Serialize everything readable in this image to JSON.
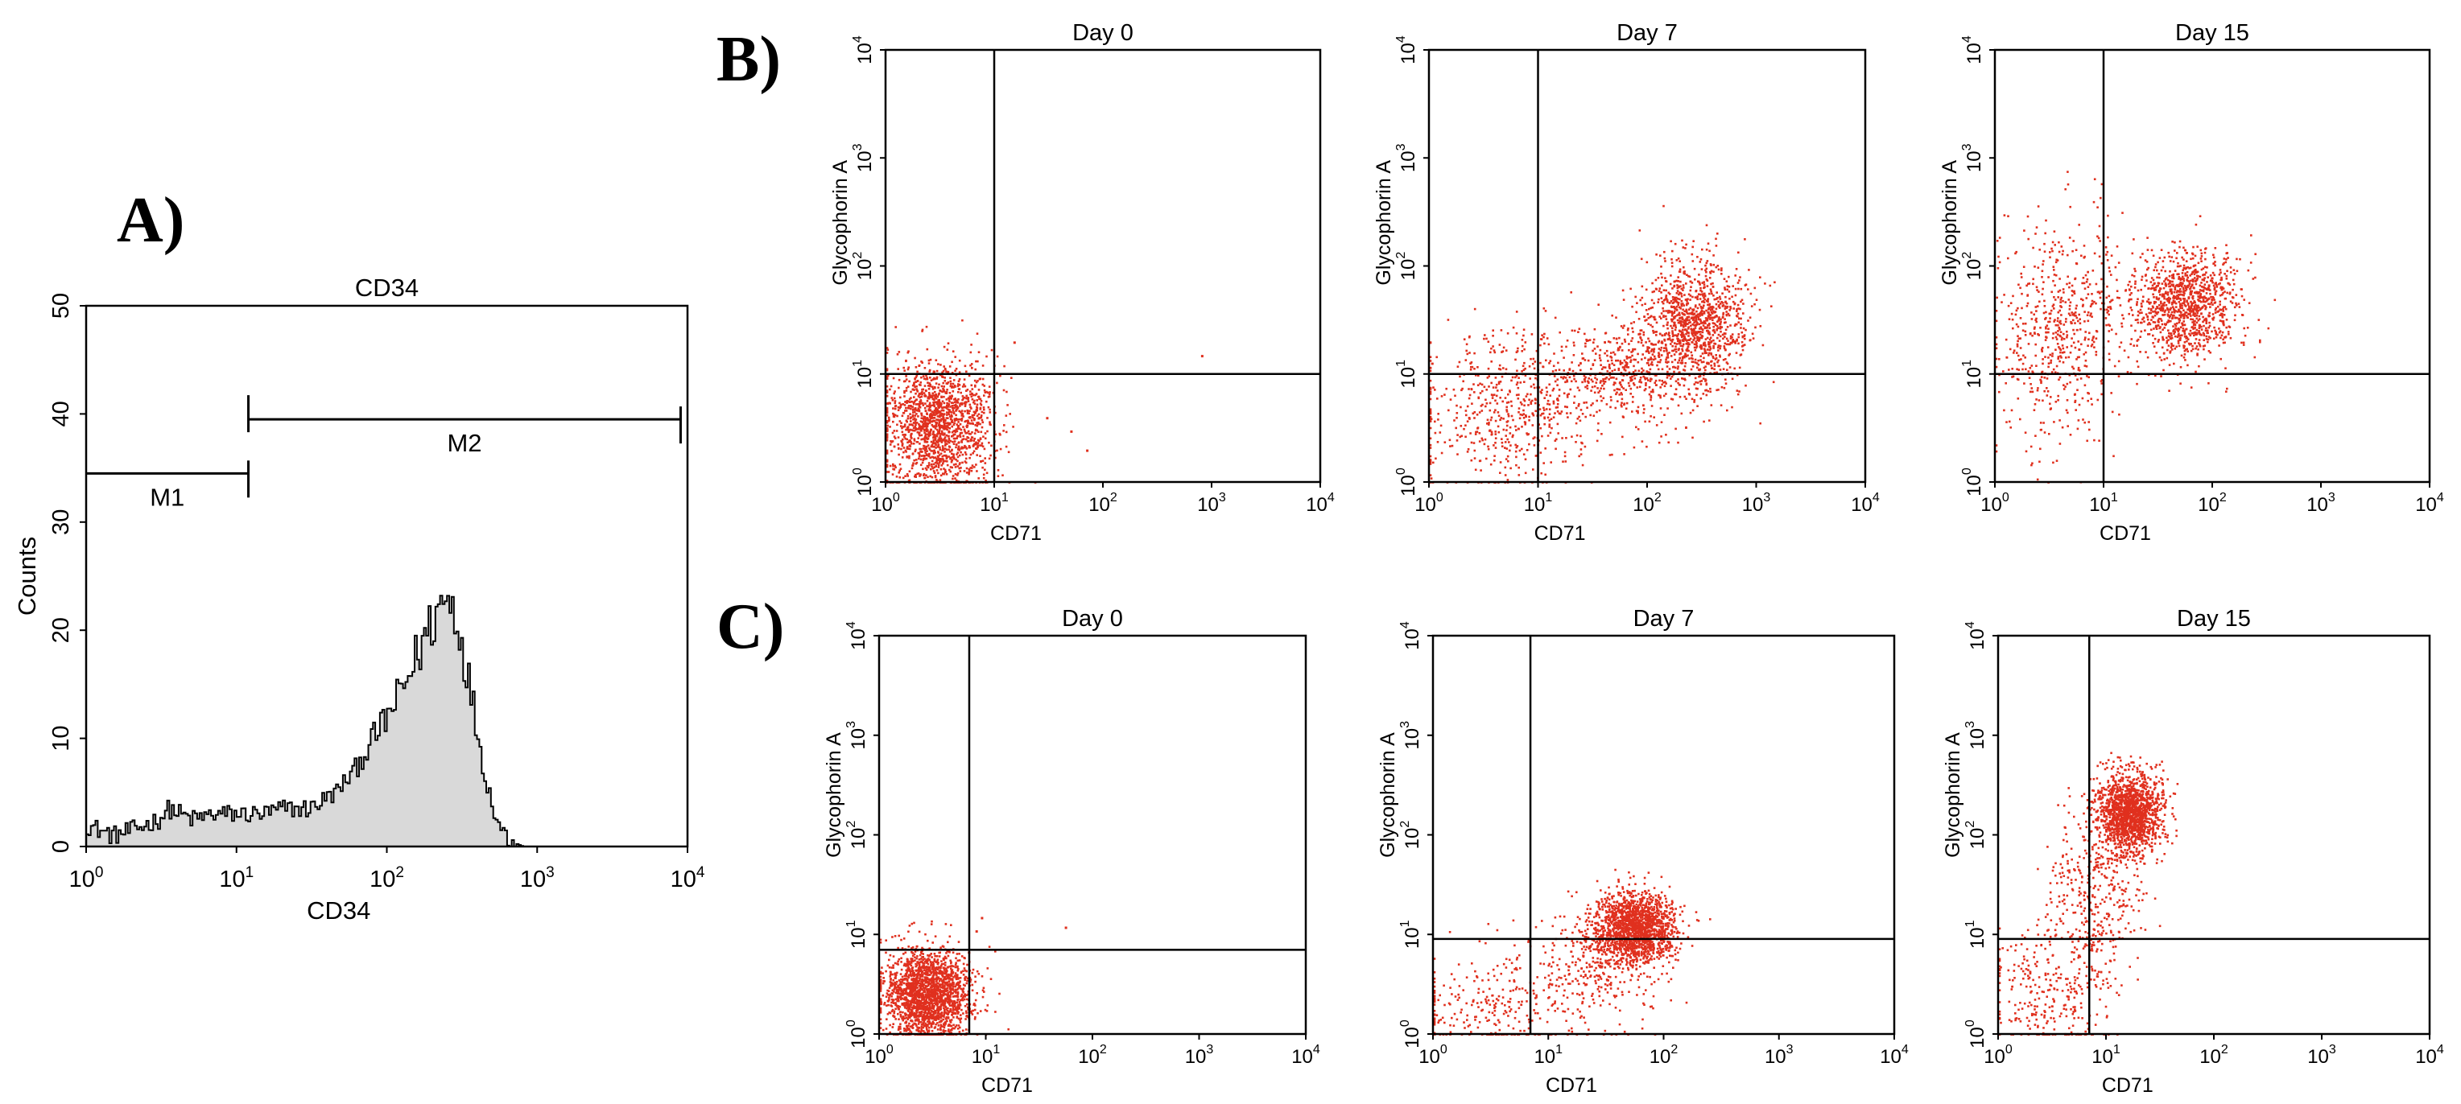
{
  "panel_labels": {
    "a": "A)",
    "b": "B)",
    "c": "C)"
  },
  "chart_data": [
    {
      "id": "A",
      "type": "histogram",
      "title": "CD34",
      "xlabel": "CD34",
      "ylabel": "Counts",
      "x_scale": "log",
      "xlim": [
        1,
        10000
      ],
      "ylim": [
        0,
        50
      ],
      "x_ticks": [
        {
          "base": "10",
          "exp": "0"
        },
        {
          "base": "10",
          "exp": "1"
        },
        {
          "base": "10",
          "exp": "2"
        },
        {
          "base": "10",
          "exp": "3"
        },
        {
          "base": "10",
          "exp": "4"
        }
      ],
      "y_ticks": [
        "0",
        "10",
        "20",
        "30",
        "40",
        "50"
      ],
      "fill_color": "#d9d9d9",
      "markers": [
        {
          "name": "M1",
          "x_start": 1,
          "x_end": 12,
          "y": 34.5
        },
        {
          "name": "M2",
          "x_start": 12,
          "x_end": 9000,
          "y": 39.5
        }
      ],
      "profile": [
        {
          "x": 1.0,
          "y": 2
        },
        {
          "x": 1.5,
          "y": 1
        },
        {
          "x": 2.0,
          "y": 1.5
        },
        {
          "x": 3.0,
          "y": 2.5
        },
        {
          "x": 3.5,
          "y": 3.5
        },
        {
          "x": 5.0,
          "y": 2.5
        },
        {
          "x": 7.0,
          "y": 3
        },
        {
          "x": 10,
          "y": 3
        },
        {
          "x": 15,
          "y": 3
        },
        {
          "x": 20,
          "y": 3.5
        },
        {
          "x": 30,
          "y": 3.5
        },
        {
          "x": 45,
          "y": 5
        },
        {
          "x": 60,
          "y": 7
        },
        {
          "x": 80,
          "y": 10
        },
        {
          "x": 100,
          "y": 12
        },
        {
          "x": 130,
          "y": 15
        },
        {
          "x": 160,
          "y": 18
        },
        {
          "x": 200,
          "y": 21
        },
        {
          "x": 240,
          "y": 23
        },
        {
          "x": 280,
          "y": 22
        },
        {
          "x": 320,
          "y": 18
        },
        {
          "x": 380,
          "y": 12
        },
        {
          "x": 450,
          "y": 6
        },
        {
          "x": 550,
          "y": 2
        },
        {
          "x": 650,
          "y": 0.5
        },
        {
          "x": 800,
          "y": 0
        },
        {
          "x": 10000,
          "y": 0
        }
      ]
    },
    {
      "id": "B-day0",
      "type": "scatter",
      "title": "Day 0",
      "xlabel": "CD71",
      "ylabel": "Glycophorin A",
      "x_scale": "log",
      "y_scale": "log",
      "xlim": [
        1,
        10000
      ],
      "ylim": [
        1,
        10000
      ],
      "quadrant": {
        "x": 10,
        "y": 10
      },
      "color": "#e0301e",
      "clusters": [
        {
          "cx": 3,
          "cy": 3.5,
          "sx": 0.26,
          "sy": 0.3,
          "n": 1600
        }
      ],
      "outliers": [
        {
          "x": 800,
          "y": 15
        },
        {
          "x": 50,
          "y": 3
        },
        {
          "x": 30,
          "y": 4
        },
        {
          "x": 15,
          "y": 20
        },
        {
          "x": 70,
          "y": 2
        }
      ]
    },
    {
      "id": "B-day7",
      "type": "scatter",
      "title": "Day 7",
      "xlabel": "CD71",
      "ylabel": "Glycophorin A",
      "x_scale": "log",
      "y_scale": "log",
      "xlim": [
        1,
        10000
      ],
      "ylim": [
        1,
        10000
      ],
      "quadrant": {
        "x": 10,
        "y": 10
      },
      "color": "#e0301e",
      "clusters": [
        {
          "cx": 270,
          "cy": 30,
          "sx": 0.25,
          "sy": 0.3,
          "n": 1100
        },
        {
          "cx": 60,
          "cy": 10,
          "sx": 0.35,
          "sy": 0.25,
          "n": 500
        },
        {
          "cx": 5,
          "cy": 5,
          "sx": 0.4,
          "sy": 0.35,
          "n": 550
        }
      ],
      "outliers": []
    },
    {
      "id": "B-day15",
      "type": "scatter",
      "title": "Day 15",
      "xlabel": "CD71",
      "ylabel": "Glycophorin A",
      "x_scale": "log",
      "y_scale": "log",
      "xlim": [
        1,
        10000
      ],
      "ylim": [
        1,
        10000
      ],
      "quadrant": {
        "x": 10,
        "y": 10
      },
      "color": "#e0301e",
      "clusters": [
        {
          "cx": 55,
          "cy": 45,
          "sx": 0.25,
          "sy": 0.25,
          "n": 1100
        },
        {
          "cx": 4,
          "cy": 25,
          "sx": 0.3,
          "sy": 0.5,
          "n": 600
        }
      ],
      "outliers": []
    },
    {
      "id": "C-day0",
      "type": "scatter",
      "title": "Day 0",
      "xlabel": "CD71",
      "ylabel": "Glycophorin A",
      "x_scale": "log",
      "y_scale": "log",
      "xlim": [
        1,
        10000
      ],
      "ylim": [
        1,
        10000
      ],
      "quadrant": {
        "x": 7,
        "y": 7
      },
      "color": "#e0301e",
      "clusters": [
        {
          "cx": 2.8,
          "cy": 2.6,
          "sx": 0.2,
          "sy": 0.22,
          "n": 2000
        }
      ],
      "outliers": [
        {
          "x": 55,
          "y": 12
        },
        {
          "x": 9,
          "y": 15
        },
        {
          "x": 8,
          "y": 11
        }
      ]
    },
    {
      "id": "C-day7",
      "type": "scatter",
      "title": "Day 7",
      "xlabel": "CD71",
      "ylabel": "Glycophorin A",
      "x_scale": "log",
      "y_scale": "log",
      "xlim": [
        1,
        10000
      ],
      "ylim": [
        1,
        10000
      ],
      "quadrant": {
        "x": 7,
        "y": 9
      },
      "color": "#e0301e",
      "clusters": [
        {
          "cx": 55,
          "cy": 12,
          "sx": 0.17,
          "sy": 0.18,
          "n": 1600
        },
        {
          "cx": 25,
          "cy": 5,
          "sx": 0.3,
          "sy": 0.3,
          "n": 350
        },
        {
          "cx": 3,
          "cy": 2,
          "sx": 0.35,
          "sy": 0.25,
          "n": 250
        }
      ],
      "outliers": []
    },
    {
      "id": "C-day15",
      "type": "scatter",
      "title": "Day 15",
      "xlabel": "CD71",
      "ylabel": "Glycophorin A",
      "x_scale": "log",
      "y_scale": "log",
      "xlim": [
        1,
        10000
      ],
      "ylim": [
        1,
        10000
      ],
      "quadrant": {
        "x": 7,
        "y": 9
      },
      "color": "#e0301e",
      "clusters": [
        {
          "cx": 16,
          "cy": 170,
          "sx": 0.15,
          "sy": 0.2,
          "n": 1600
        },
        {
          "cx": 8,
          "cy": 25,
          "sx": 0.22,
          "sy": 0.4,
          "n": 350
        },
        {
          "cx": 3,
          "cy": 3,
          "sx": 0.3,
          "sy": 0.35,
          "n": 300
        }
      ],
      "outliers": []
    }
  ]
}
